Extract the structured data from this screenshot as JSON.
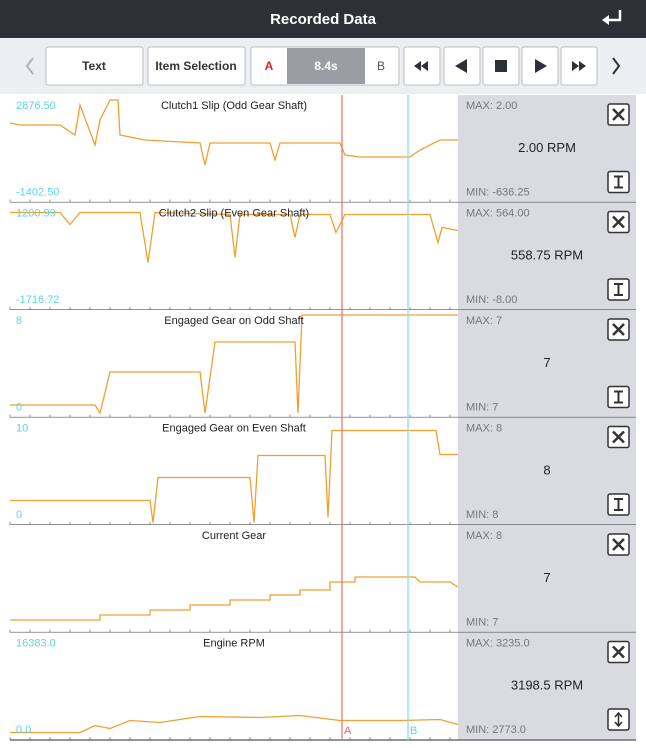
{
  "header": {
    "title": "Recorded Data"
  },
  "toolbar": {
    "text_button": "Text",
    "item_selection": "Item Selection",
    "marker_a": "A",
    "time": "8.4s",
    "marker_b": "B"
  },
  "panels": [
    {
      "title": "Clutch1 Slip (Odd Gear Shaft)",
      "top_label": "2876.50",
      "bottom_label": "-1402.50",
      "max": "MAX: 2.00",
      "value": "2.00 RPM",
      "min": "MIN: -636.25"
    },
    {
      "title": "Clutch2 Slip (Even Gear Shaft)",
      "top_label": "1200.99",
      "bottom_label": "-1716.72",
      "max": "MAX: 564.00",
      "value": "558.75 RPM",
      "min": "MIN: -8.00"
    },
    {
      "title": "Engaged Gear on Odd Shaft",
      "top_label": "8",
      "bottom_label": "0",
      "max": "MAX: 7",
      "value": "7",
      "min": "MIN: 7"
    },
    {
      "title": "Engaged Gear on Even Shaft",
      "top_label": "10",
      "bottom_label": "0",
      "max": "MAX: 8",
      "value": "8",
      "min": "MIN: 8"
    },
    {
      "title": "Current Gear",
      "max": "MAX: 8",
      "value": "7",
      "min": "MIN: 7"
    },
    {
      "title": "Engine RPM",
      "top_label": "16383.0",
      "bottom_label": "0.0",
      "max": "MAX: 3235.0",
      "value": "3198.5 RPM",
      "min": "MIN: 2773.0"
    }
  ],
  "cursors": {
    "a": "A",
    "b": "B"
  }
}
